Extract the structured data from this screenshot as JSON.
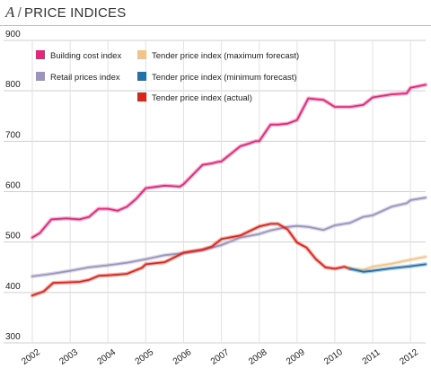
{
  "header": {
    "panel_letter": "A",
    "separator": "/",
    "title": "PRICE INDICES"
  },
  "chart_data": {
    "type": "line",
    "title": "PRICE INDICES",
    "ylim": [
      300,
      900
    ],
    "yticks": [
      300,
      400,
      500,
      600,
      700,
      800,
      900
    ],
    "xlim": [
      2002,
      2012.4
    ],
    "xticks": [
      2002,
      2003,
      2004,
      2005,
      2006,
      2007,
      2008,
      2009,
      2010,
      2011,
      2012
    ],
    "grid": true,
    "legend_position": "top-left",
    "series": [
      {
        "name": "Building cost index",
        "color": "#e0297a",
        "x": [
          2002,
          2002.2,
          2002.5,
          2002.9,
          2003.25,
          2003.5,
          2003.75,
          2004,
          2004.25,
          2004.5,
          2004.75,
          2005,
          2005.5,
          2005.9,
          2006,
          2006.5,
          2006.75,
          2006.9,
          2007,
          2007.5,
          2007.75,
          2007.9,
          2008,
          2008.3,
          2008.5,
          2008.75,
          2009,
          2009.3,
          2009.7,
          2010,
          2010.4,
          2010.75,
          2011,
          2011.5,
          2011.9,
          2012,
          2012.4
        ],
        "y": [
          509,
          518,
          545,
          547,
          545,
          550,
          566,
          566,
          562,
          570,
          586,
          607,
          612,
          610,
          615,
          653,
          656,
          659,
          660,
          690,
          696,
          700,
          700,
          733,
          733,
          735,
          742,
          785,
          782,
          768,
          768,
          772,
          787,
          793,
          795,
          806,
          812
        ]
      },
      {
        "name": "Retail prices index",
        "color": "#9c94bc",
        "x": [
          2002,
          2002.5,
          2003,
          2003.5,
          2004,
          2004.5,
          2005,
          2005.5,
          2006,
          2006.5,
          2007,
          2007.5,
          2008,
          2008.3,
          2008.75,
          2009,
          2009.3,
          2009.7,
          2010,
          2010.4,
          2010.75,
          2011,
          2011.5,
          2011.9,
          2012,
          2012.4
        ],
        "y": [
          432,
          437,
          443,
          450,
          454,
          459,
          466,
          474,
          478,
          484,
          494,
          509,
          516,
          523,
          530,
          532,
          530,
          524,
          533,
          538,
          550,
          553,
          570,
          577,
          583,
          588
        ]
      },
      {
        "name": "Tender price index (actual)",
        "color": "#d9261c",
        "x": [
          2002,
          2002.3,
          2002.55,
          2002.9,
          2003.25,
          2003.5,
          2003.75,
          2004,
          2004.5,
          2004.9,
          2005,
          2005.5,
          2005.9,
          2006,
          2006.5,
          2006.75,
          2007,
          2007.5,
          2007.75,
          2008,
          2008.3,
          2008.5,
          2008.75,
          2009,
          2009.25,
          2009.5,
          2009.75,
          2010,
          2010.25,
          2010.4
        ],
        "y": [
          394,
          402,
          419,
          420,
          421,
          425,
          433,
          434,
          437,
          449,
          456,
          460,
          475,
          479,
          485,
          491,
          506,
          513,
          522,
          531,
          536,
          536,
          525,
          499,
          489,
          466,
          450,
          447,
          451,
          447
        ]
      },
      {
        "name": "Tender price index (maximum forecast)",
        "color": "#f1c48a",
        "x": [
          2010.4,
          2010.75,
          2011,
          2011.5,
          2012,
          2012.4
        ],
        "y": [
          447,
          445,
          451,
          457,
          465,
          471
        ]
      },
      {
        "name": "Tender price index (minimum forecast)",
        "color": "#2470a8",
        "x": [
          2010.4,
          2010.75,
          2011,
          2011.5,
          2012,
          2012.4
        ],
        "y": [
          447,
          441,
          443,
          448,
          452,
          456
        ]
      }
    ],
    "legend_order": [
      0,
      1,
      3,
      4,
      2
    ]
  }
}
